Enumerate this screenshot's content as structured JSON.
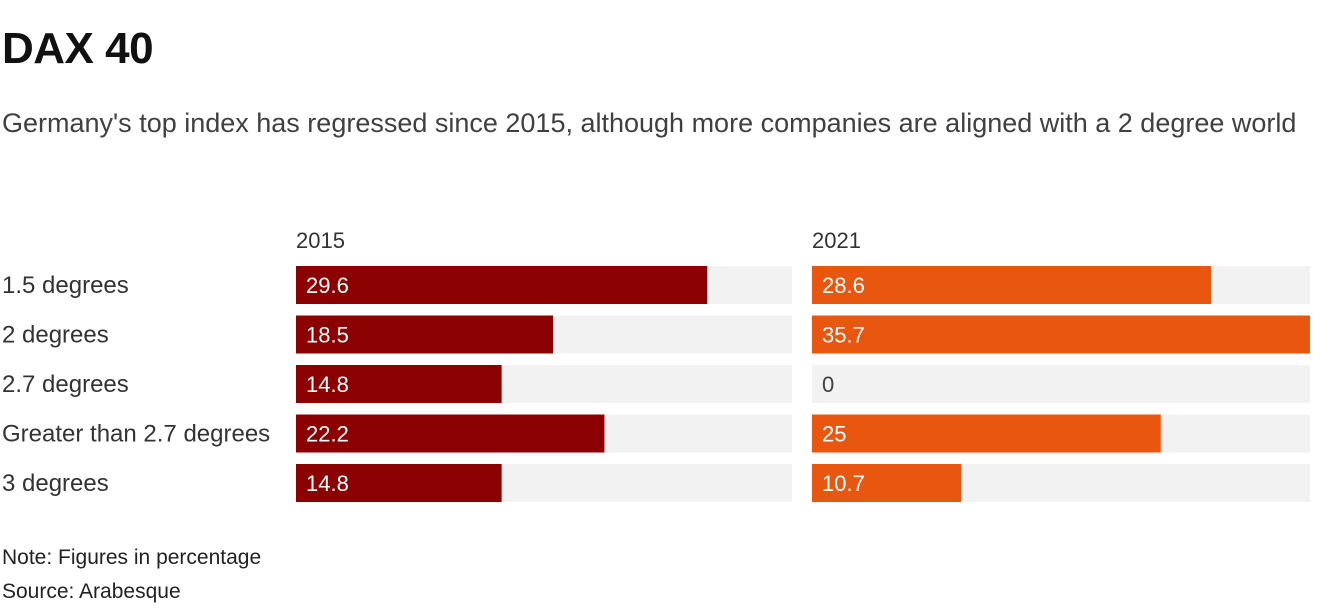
{
  "chart_data": {
    "type": "bar",
    "orientation": "horizontal",
    "title": "DAX 40",
    "subtitle": "Germany's top index has regressed since 2015, although more companies are aligned with a 2 degree world",
    "categories": [
      "1.5 degrees",
      "2 degrees",
      "2.7 degrees",
      "Greater than 2.7 degrees",
      "3 degrees"
    ],
    "series": [
      {
        "name": "2015",
        "values": [
          29.6,
          18.5,
          14.8,
          22.2,
          14.8
        ],
        "labels": [
          "29.6",
          "18.5",
          "14.8",
          "22.2",
          "14.8"
        ],
        "color": "#8B0000"
      },
      {
        "name": "2021",
        "values": [
          28.6,
          35.7,
          0,
          25,
          10.7
        ],
        "labels": [
          "28.6",
          "35.7",
          "0",
          "25",
          "10.7"
        ],
        "color": "#E8560F"
      }
    ],
    "xlim": [
      0,
      35.7
    ],
    "track_color": "#F2F2F2",
    "grid": false,
    "layout": "small-multiples"
  },
  "footer": {
    "note": "Note: Figures in percentage",
    "source": "Source: Arabesque"
  }
}
